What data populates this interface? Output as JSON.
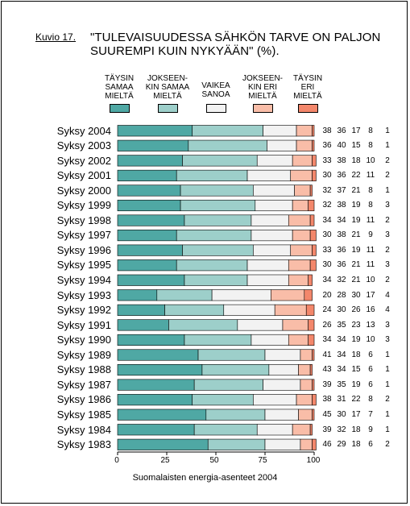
{
  "figure": {
    "label": "Kuvio 17.",
    "title_lines": [
      "\"TULEVAISUUDESSA SÄHKÖN TARVE ON PALJON",
      "SUUREMPI KUIN NYKYÄÄN\" (%)."
    ],
    "source": "Suomalaisten energia-asenteet 2004"
  },
  "legend": [
    {
      "label": "TÄYSIN\nSAMAA\nMIELTÄ",
      "color": "#4fa8a4"
    },
    {
      "label": "JOKSEEN-\nKIN SAMAA\nMIELTÄ",
      "color": "#9dcfca"
    },
    {
      "label": "VAIKEA\nSANOA",
      "color": "#f2f2f2"
    },
    {
      "label": "JOKSEEN-\nKIN ERI\nMIELTÄ",
      "color": "#f9bda8"
    },
    {
      "label": "TÄYSIN\nERI\nMIELTÄ",
      "color": "#f3876b"
    }
  ],
  "chart_data": {
    "type": "bar",
    "orientation": "horizontal",
    "stacked": true,
    "title": "\"TULEVAISUUDESSA SÄHKÖN TARVE ON PALJON SUUREMPI KUIN NYKYÄÄN\" (%).",
    "xlim": [
      0,
      100
    ],
    "x_ticks": [
      "0",
      "25",
      "50",
      "75",
      "100"
    ],
    "categories": [
      "Syksy 2004",
      "Syksy 2003",
      "Syksy 2002",
      "Syksy 2001",
      "Syksy 2000",
      "Syksy 1999",
      "Syksy 1998",
      "Syksy 1997",
      "Syksy 1996",
      "Syksy 1995",
      "Syksy 1994",
      "Syksy 1993",
      "Syksy 1992",
      "Syksy 1991",
      "Syksy 1990",
      "Syksy 1989",
      "Syksy 1988",
      "Syksy 1987",
      "Syksy 1986",
      "Syksy 1985",
      "Syksy 1984",
      "Syksy 1983"
    ],
    "series": [
      {
        "name": "TÄYSIN SAMAA MIELTÄ",
        "values": [
          38,
          36,
          33,
          30,
          32,
          32,
          34,
          30,
          33,
          30,
          34,
          20,
          24,
          26,
          34,
          41,
          43,
          39,
          38,
          45,
          39,
          46
        ]
      },
      {
        "name": "JOKSEENKIN SAMAA MIELTÄ",
        "values": [
          36,
          40,
          38,
          36,
          37,
          38,
          34,
          38,
          36,
          36,
          32,
          28,
          30,
          35,
          34,
          34,
          34,
          35,
          31,
          30,
          32,
          29
        ]
      },
      {
        "name": "VAIKEA SANOA",
        "values": [
          17,
          15,
          18,
          22,
          21,
          19,
          19,
          21,
          19,
          21,
          21,
          30,
          26,
          23,
          19,
          18,
          15,
          19,
          22,
          17,
          18,
          18
        ]
      },
      {
        "name": "JOKSEENKIN ERI MIELTÄ",
        "values": [
          8,
          8,
          10,
          11,
          8,
          8,
          11,
          9,
          11,
          11,
          10,
          17,
          16,
          13,
          10,
          6,
          6,
          6,
          8,
          7,
          9,
          6
        ]
      },
      {
        "name": "TÄYSIN ERI MIELTÄ",
        "values": [
          1,
          1,
          2,
          2,
          1,
          3,
          2,
          3,
          2,
          3,
          2,
          4,
          4,
          3,
          3,
          1,
          1,
          1,
          2,
          1,
          1,
          2
        ]
      }
    ],
    "legend_position": "top",
    "grid": false
  }
}
